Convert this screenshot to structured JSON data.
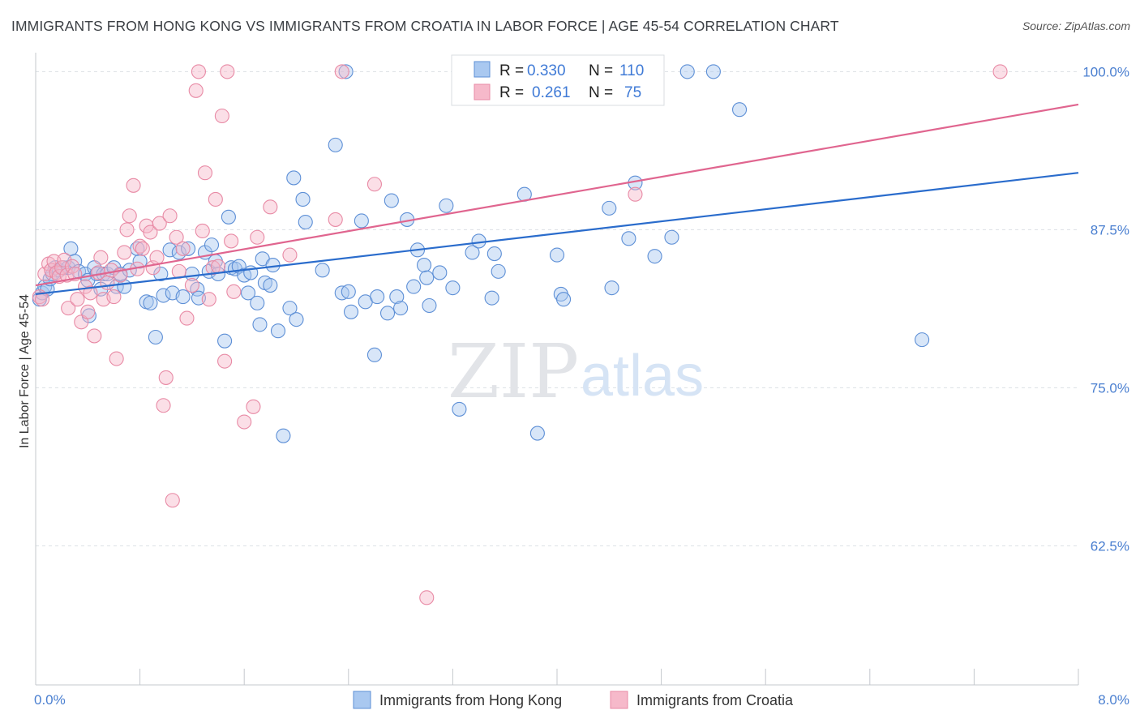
{
  "header": {
    "title": "IMMIGRANTS FROM HONG KONG VS IMMIGRANTS FROM CROATIA IN LABOR FORCE | AGE 45-54 CORRELATION CHART",
    "source": "Source: ZipAtlas.com"
  },
  "watermark": {
    "zip": "ZIP",
    "atlas": "atlas"
  },
  "legend_top": {
    "r_label": "R =",
    "n_label": "N =",
    "rows": [
      {
        "r": "0.330",
        "n": "110"
      },
      {
        "r": "0.261",
        "n": "75"
      }
    ]
  },
  "colors": {
    "hong_kong_fill": "#a9c8f0",
    "hong_kong_stroke": "#5d8fd6",
    "hong_kong_line": "#2a6ccc",
    "croatia_fill": "#f6b9ca",
    "croatia_stroke": "#e88aa5",
    "croatia_line": "#e0658f",
    "grid": "#dcdfe4",
    "tick_label": "#4a7fd0"
  },
  "chart_data": {
    "type": "scatter",
    "title": "IMMIGRANTS FROM HONG KONG VS IMMIGRANTS FROM CROATIA IN LABOR FORCE | AGE 45-54 CORRELATION CHART",
    "xlabel": "",
    "ylabel": "In Labor Force | Age 45-54",
    "xlim": [
      0,
      8
    ],
    "ylim": [
      51.5,
      101.5
    ],
    "x_tick_labels": [
      "0.0%",
      "8.0%"
    ],
    "y_ticks": [
      62.5,
      75.0,
      87.5,
      100.0
    ],
    "y_tick_labels": [
      "62.5%",
      "75.0%",
      "87.5%",
      "100.0%"
    ],
    "grid": true,
    "legend_position": "top-center",
    "series": [
      {
        "name": "Immigrants from Hong Kong",
        "r": 0.33,
        "n": 110,
        "trend": {
          "x0": 0.0,
          "y0": 82.4,
          "x1": 8.0,
          "y1": 92.0
        },
        "points": [
          [
            0.03,
            82.0
          ],
          [
            0.05,
            82.5
          ],
          [
            0.07,
            83.0
          ],
          [
            0.09,
            82.8
          ],
          [
            0.11,
            83.6
          ],
          [
            0.13,
            84.0
          ],
          [
            0.15,
            84.5
          ],
          [
            0.18,
            84.3
          ],
          [
            0.21,
            84.5
          ],
          [
            0.25,
            84.5
          ],
          [
            0.27,
            86.0
          ],
          [
            0.3,
            85.0
          ],
          [
            0.33,
            84.2
          ],
          [
            0.38,
            84.0
          ],
          [
            0.4,
            83.5
          ],
          [
            0.41,
            80.7
          ],
          [
            0.45,
            84.5
          ],
          [
            0.47,
            84.0
          ],
          [
            0.5,
            82.8
          ],
          [
            0.52,
            84.0
          ],
          [
            0.55,
            84.0
          ],
          [
            0.6,
            84.5
          ],
          [
            0.62,
            83.0
          ],
          [
            0.65,
            84.0
          ],
          [
            0.68,
            83.0
          ],
          [
            0.72,
            84.3
          ],
          [
            0.78,
            86.0
          ],
          [
            0.8,
            85.0
          ],
          [
            0.85,
            81.8
          ],
          [
            0.88,
            81.7
          ],
          [
            0.92,
            79.0
          ],
          [
            0.96,
            84.0
          ],
          [
            0.98,
            82.3
          ],
          [
            1.03,
            85.9
          ],
          [
            1.05,
            82.5
          ],
          [
            1.1,
            85.7
          ],
          [
            1.13,
            82.2
          ],
          [
            1.17,
            86.0
          ],
          [
            1.2,
            84.0
          ],
          [
            1.24,
            82.8
          ],
          [
            1.25,
            82.1
          ],
          [
            1.3,
            85.7
          ],
          [
            1.33,
            84.2
          ],
          [
            1.35,
            86.3
          ],
          [
            1.38,
            85.0
          ],
          [
            1.4,
            84.0
          ],
          [
            1.45,
            78.7
          ],
          [
            1.48,
            88.5
          ],
          [
            1.5,
            84.5
          ],
          [
            1.53,
            84.4
          ],
          [
            1.56,
            84.6
          ],
          [
            1.6,
            83.9
          ],
          [
            1.63,
            82.5
          ],
          [
            1.65,
            84.1
          ],
          [
            1.7,
            81.7
          ],
          [
            1.72,
            80.0
          ],
          [
            1.74,
            85.2
          ],
          [
            1.76,
            83.3
          ],
          [
            1.8,
            83.1
          ],
          [
            1.82,
            84.7
          ],
          [
            1.86,
            79.5
          ],
          [
            1.9,
            71.2
          ],
          [
            1.95,
            81.3
          ],
          [
            1.98,
            91.6
          ],
          [
            2.0,
            80.4
          ],
          [
            2.05,
            89.9
          ],
          [
            2.07,
            88.1
          ],
          [
            2.2,
            84.3
          ],
          [
            2.3,
            94.2
          ],
          [
            2.35,
            82.5
          ],
          [
            2.38,
            100.0
          ],
          [
            2.4,
            82.6
          ],
          [
            2.42,
            81.0
          ],
          [
            2.5,
            88.2
          ],
          [
            2.53,
            81.8
          ],
          [
            2.6,
            77.6
          ],
          [
            2.62,
            82.2
          ],
          [
            2.7,
            80.9
          ],
          [
            2.73,
            89.8
          ],
          [
            2.77,
            82.2
          ],
          [
            2.8,
            81.3
          ],
          [
            2.85,
            88.3
          ],
          [
            2.9,
            83.0
          ],
          [
            2.93,
            85.9
          ],
          [
            2.98,
            84.7
          ],
          [
            3.0,
            83.7
          ],
          [
            3.02,
            81.5
          ],
          [
            3.1,
            84.1
          ],
          [
            3.15,
            89.4
          ],
          [
            3.2,
            82.9
          ],
          [
            3.25,
            73.3
          ],
          [
            3.35,
            85.7
          ],
          [
            3.4,
            86.6
          ],
          [
            3.5,
            82.1
          ],
          [
            3.52,
            85.6
          ],
          [
            3.55,
            84.2
          ],
          [
            3.6,
            100.0
          ],
          [
            3.75,
            90.3
          ],
          [
            3.85,
            71.4
          ],
          [
            4.0,
            85.5
          ],
          [
            4.03,
            82.4
          ],
          [
            4.05,
            82.0
          ],
          [
            4.4,
            89.2
          ],
          [
            4.42,
            82.9
          ],
          [
            4.55,
            86.8
          ],
          [
            4.6,
            91.2
          ],
          [
            4.75,
            85.4
          ],
          [
            4.88,
            86.9
          ],
          [
            5.0,
            100.0
          ],
          [
            5.2,
            100.0
          ],
          [
            5.4,
            97.0
          ],
          [
            6.8,
            78.8
          ]
        ]
      },
      {
        "name": "Immigrants from Croatia",
        "r": 0.261,
        "n": 75,
        "trend": {
          "x0": 0.0,
          "y0": 83.1,
          "x1": 8.0,
          "y1": 97.4
        },
        "points": [
          [
            0.03,
            82.2
          ],
          [
            0.05,
            82.0
          ],
          [
            0.07,
            84.0
          ],
          [
            0.1,
            84.8
          ],
          [
            0.12,
            84.3
          ],
          [
            0.14,
            85.0
          ],
          [
            0.16,
            84.1
          ],
          [
            0.18,
            83.8
          ],
          [
            0.2,
            84.5
          ],
          [
            0.22,
            85.1
          ],
          [
            0.24,
            83.9
          ],
          [
            0.25,
            81.3
          ],
          [
            0.28,
            84.6
          ],
          [
            0.3,
            84.0
          ],
          [
            0.32,
            82.0
          ],
          [
            0.35,
            80.2
          ],
          [
            0.38,
            83.0
          ],
          [
            0.4,
            81.0
          ],
          [
            0.42,
            82.5
          ],
          [
            0.45,
            79.1
          ],
          [
            0.48,
            84.1
          ],
          [
            0.5,
            85.3
          ],
          [
            0.52,
            82.0
          ],
          [
            0.55,
            83.3
          ],
          [
            0.58,
            84.3
          ],
          [
            0.6,
            82.2
          ],
          [
            0.62,
            77.3
          ],
          [
            0.65,
            83.9
          ],
          [
            0.68,
            85.7
          ],
          [
            0.7,
            87.5
          ],
          [
            0.72,
            88.6
          ],
          [
            0.75,
            91.0
          ],
          [
            0.78,
            84.4
          ],
          [
            0.8,
            86.2
          ],
          [
            0.82,
            86.0
          ],
          [
            0.85,
            87.8
          ],
          [
            0.88,
            87.3
          ],
          [
            0.9,
            84.5
          ],
          [
            0.93,
            85.3
          ],
          [
            0.95,
            88.0
          ],
          [
            0.98,
            73.6
          ],
          [
            1.0,
            75.8
          ],
          [
            1.03,
            88.6
          ],
          [
            1.05,
            66.1
          ],
          [
            1.08,
            86.9
          ],
          [
            1.1,
            84.2
          ],
          [
            1.13,
            86.0
          ],
          [
            1.16,
            80.5
          ],
          [
            1.2,
            83.1
          ],
          [
            1.23,
            98.5
          ],
          [
            1.25,
            100.0
          ],
          [
            1.28,
            87.4
          ],
          [
            1.3,
            92.0
          ],
          [
            1.33,
            82.0
          ],
          [
            1.36,
            84.5
          ],
          [
            1.38,
            89.9
          ],
          [
            1.4,
            84.6
          ],
          [
            1.43,
            96.5
          ],
          [
            1.45,
            77.1
          ],
          [
            1.47,
            100.0
          ],
          [
            1.5,
            86.6
          ],
          [
            1.52,
            82.6
          ],
          [
            1.6,
            72.3
          ],
          [
            1.67,
            73.5
          ],
          [
            1.7,
            86.9
          ],
          [
            1.8,
            89.3
          ],
          [
            1.95,
            85.5
          ],
          [
            2.3,
            88.3
          ],
          [
            2.35,
            100.0
          ],
          [
            2.6,
            91.1
          ],
          [
            3.0,
            58.4
          ],
          [
            4.6,
            90.3
          ],
          [
            7.4,
            100.0
          ]
        ]
      }
    ],
    "bottom_legend": [
      "Immigrants from Hong Kong",
      "Immigrants from Croatia"
    ]
  }
}
